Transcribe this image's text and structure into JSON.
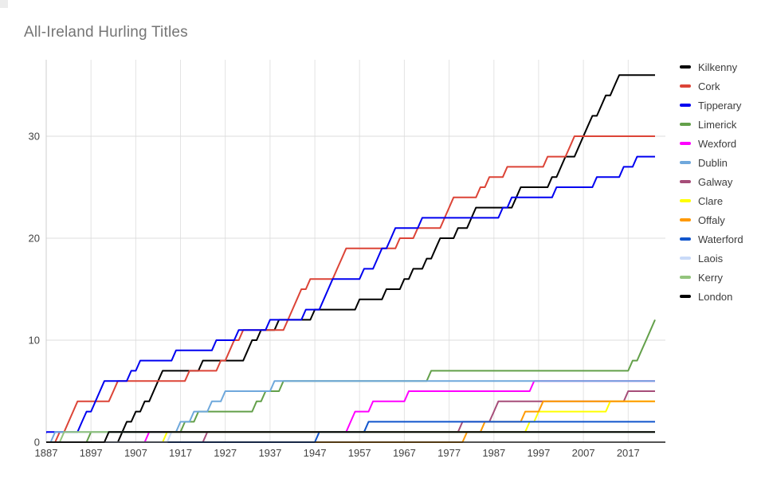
{
  "title": "All-Ireland Hurling Titles",
  "colors": {
    "title_text": "#757575",
    "axis_text": "#424242",
    "grid_vertical": "#e3e3e3",
    "grid_horizontal": "#dcdcdc",
    "y_axis_line": "#cfcfcf",
    "x_axis_line": "#1a1a1a",
    "background": "#ffffff"
  },
  "chart_data": {
    "type": "line",
    "title": "All-Ireland Hurling Titles",
    "xlabel": "",
    "ylabel": "",
    "x_axis": {
      "range": [
        1887,
        2023
      ],
      "ticks": [
        1887,
        1897,
        1907,
        1917,
        1927,
        1937,
        1947,
        1957,
        1967,
        1977,
        1987,
        1997,
        2007,
        2017
      ]
    },
    "y_axis": {
      "range": [
        0,
        37.5
      ],
      "ticks": [
        0,
        10,
        20,
        30
      ]
    },
    "grid": true,
    "legend_position": "right",
    "line_style": "cumulative step (1-year ramps), yearly sampling",
    "series": [
      {
        "name": "Kilkenny",
        "color": "#000000",
        "total": 36,
        "win_years": [
          1904,
          1905,
          1907,
          1909,
          1911,
          1912,
          1913,
          1922,
          1932,
          1933,
          1935,
          1939,
          1947,
          1957,
          1963,
          1967,
          1969,
          1972,
          1974,
          1975,
          1979,
          1982,
          1983,
          1992,
          1993,
          2000,
          2002,
          2003,
          2006,
          2007,
          2008,
          2009,
          2011,
          2012,
          2014,
          2015
        ]
      },
      {
        "name": "Cork",
        "color": "#dc4437",
        "total": 30,
        "win_years": [
          1890,
          1892,
          1893,
          1894,
          1902,
          1903,
          1919,
          1926,
          1928,
          1929,
          1931,
          1941,
          1942,
          1943,
          1944,
          1946,
          1952,
          1953,
          1954,
          1966,
          1970,
          1976,
          1977,
          1978,
          1984,
          1986,
          1990,
          1999,
          2004,
          2005
        ]
      },
      {
        "name": "Tipperary",
        "color": "#0000f0",
        "total": 28,
        "win_years": [
          1887,
          1895,
          1896,
          1898,
          1899,
          1900,
          1906,
          1908,
          1916,
          1925,
          1930,
          1937,
          1945,
          1949,
          1950,
          1951,
          1958,
          1961,
          1962,
          1964,
          1965,
          1971,
          1989,
          1991,
          2001,
          2010,
          2016,
          2019
        ]
      },
      {
        "name": "Limerick",
        "color": "#63a04a",
        "total": 12,
        "win_years": [
          1897,
          1918,
          1921,
          1934,
          1936,
          1940,
          1973,
          2018,
          2020,
          2021,
          2022,
          2023
        ]
      },
      {
        "name": "Wexford",
        "color": "#ff00ff",
        "total": 6,
        "win_years": [
          1910,
          1955,
          1956,
          1960,
          1968,
          1996
        ]
      },
      {
        "name": "Dublin",
        "color": "#6fa8dc",
        "total": 6,
        "win_years": [
          1889,
          1917,
          1920,
          1924,
          1927,
          1938
        ]
      },
      {
        "name": "Galway",
        "color": "#a64d79",
        "total": 5,
        "win_years": [
          1923,
          1980,
          1987,
          1988,
          2017
        ]
      },
      {
        "name": "Clare",
        "color": "#ffff00",
        "total": 4,
        "win_years": [
          1914,
          1995,
          1997,
          2013
        ]
      },
      {
        "name": "Offaly",
        "color": "#ff9900",
        "total": 4,
        "win_years": [
          1981,
          1985,
          1994,
          1998
        ]
      },
      {
        "name": "Waterford",
        "color": "#1155cc",
        "total": 2,
        "win_years": [
          1948,
          1959
        ]
      },
      {
        "name": "Laois",
        "color": "#c9daf8",
        "total": 1,
        "win_years": [
          1915
        ]
      },
      {
        "name": "Kerry",
        "color": "#93c47d",
        "total": 1,
        "win_years": [
          1891
        ]
      },
      {
        "name": "London",
        "color": "#000000",
        "total": 1,
        "win_years": [
          1901
        ]
      }
    ]
  }
}
